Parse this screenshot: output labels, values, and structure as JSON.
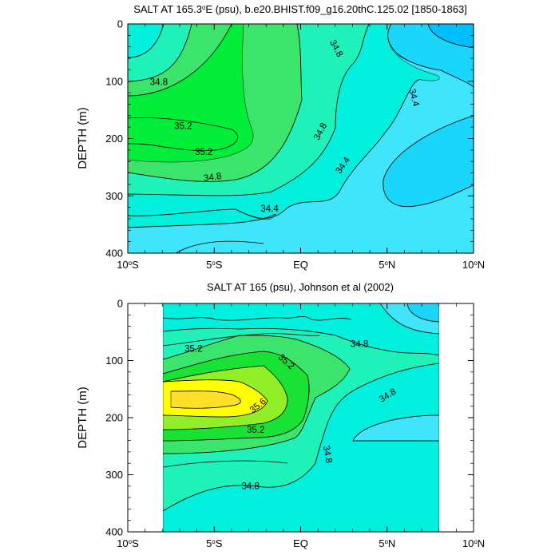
{
  "chart_data": [
    {
      "type": "contour",
      "title": "SALT AT 165.3°E (psu), b.e20.BHIST.f09_g16.20thC.125.02 [1850-1863]",
      "title_parts": {
        "pre": "SALT AT 165.3",
        "sup": "o",
        "post": "E (psu), b.e20.BHIST.f09_g16.20thC.125.02 [1850-1863]"
      },
      "xlabel": "",
      "ylabel": "DEPTH (m)",
      "xlim": [
        -10,
        10
      ],
      "ylim": [
        400,
        0
      ],
      "y_ticks": [
        0,
        100,
        200,
        300,
        400
      ],
      "x_ticks": [
        {
          "value": -10,
          "pre": "10",
          "sup": "o",
          "post": "S"
        },
        {
          "value": -5,
          "pre": "5",
          "sup": "o",
          "post": "S"
        },
        {
          "value": 0,
          "pre": "EQ",
          "sup": "",
          "post": ""
        },
        {
          "value": 5,
          "pre": "5",
          "sup": "o",
          "post": "N"
        },
        {
          "value": 10,
          "pre": "10",
          "sup": "o",
          "post": "N"
        }
      ],
      "data_extent": {
        "x": [
          -10,
          10
        ],
        "depth": [
          5,
          400
        ]
      },
      "contour_labels": [
        {
          "value": "34.8",
          "x": -8.2,
          "depth": 100,
          "angle": 0
        },
        {
          "value": "35.2",
          "x": -6.8,
          "depth": 177,
          "angle": 0
        },
        {
          "value": "35.2",
          "x": -5.6,
          "depth": 222,
          "angle": 0
        },
        {
          "value": "34.8",
          "x": -5.1,
          "depth": 266,
          "angle": -8
        },
        {
          "value": "34.4",
          "x": -1.8,
          "depth": 321,
          "angle": 0
        },
        {
          "value": "34.8",
          "x": 2.1,
          "depth": 42,
          "angle": 62
        },
        {
          "value": "34.8",
          "x": 1.1,
          "depth": 187,
          "angle": -62
        },
        {
          "value": "34.4",
          "x": 2.4,
          "depth": 246,
          "angle": -55
        },
        {
          "value": "34.4",
          "x": 6.6,
          "depth": 128,
          "angle": 75
        }
      ]
    },
    {
      "type": "contour",
      "title": "SALT AT 165 (psu), Johnson et al (2002)",
      "title_parts": {
        "pre": "SALT AT 165 (psu), Johnson et al (2002)",
        "sup": "",
        "post": ""
      },
      "xlabel": "",
      "ylabel": "DEPTH (m)",
      "xlim": [
        -10,
        10
      ],
      "ylim": [
        400,
        0
      ],
      "y_ticks": [
        0,
        100,
        200,
        300,
        400
      ],
      "x_ticks": [
        {
          "value": -10,
          "pre": "10",
          "sup": "o",
          "post": "S"
        },
        {
          "value": -5,
          "pre": "5",
          "sup": "o",
          "post": "S"
        },
        {
          "value": 0,
          "pre": "EQ",
          "sup": "",
          "post": ""
        },
        {
          "value": 5,
          "pre": "5",
          "sup": "o",
          "post": "N"
        },
        {
          "value": 10,
          "pre": "10",
          "sup": "o",
          "post": "N"
        }
      ],
      "data_extent": {
        "x": [
          -8,
          8
        ],
        "depth": [
          5,
          400
        ]
      },
      "contour_labels": [
        {
          "value": "35.2",
          "x": -6.2,
          "depth": 78,
          "angle": 0
        },
        {
          "value": "35.2",
          "x": -0.8,
          "depth": 101,
          "angle": 42
        },
        {
          "value": "35.6",
          "x": -2.5,
          "depth": 178,
          "angle": -38
        },
        {
          "value": "35.2",
          "x": -2.6,
          "depth": 220,
          "angle": 0
        },
        {
          "value": "34.8",
          "x": 3.4,
          "depth": 70,
          "angle": 0
        },
        {
          "value": "34.8",
          "x": 5.0,
          "depth": 160,
          "angle": -32
        },
        {
          "value": "34.8",
          "x": 1.6,
          "depth": 264,
          "angle": 80
        },
        {
          "value": "34.8",
          "x": -2.9,
          "depth": 319,
          "angle": 0
        }
      ]
    }
  ],
  "colors": {
    "lime": "#00ee3a",
    "green_mid": "#3be46a",
    "aqua_green": "#1ef2b8",
    "aqua": "#00f0dd",
    "cyan": "#3fe6fb",
    "blue_light": "#1ad6fa",
    "blue_mid": "#00bffc",
    "yellow_green": "#92ee26",
    "yellow": "#ffff00",
    "gold": "#ffdf27",
    "grass": "#18e233"
  }
}
